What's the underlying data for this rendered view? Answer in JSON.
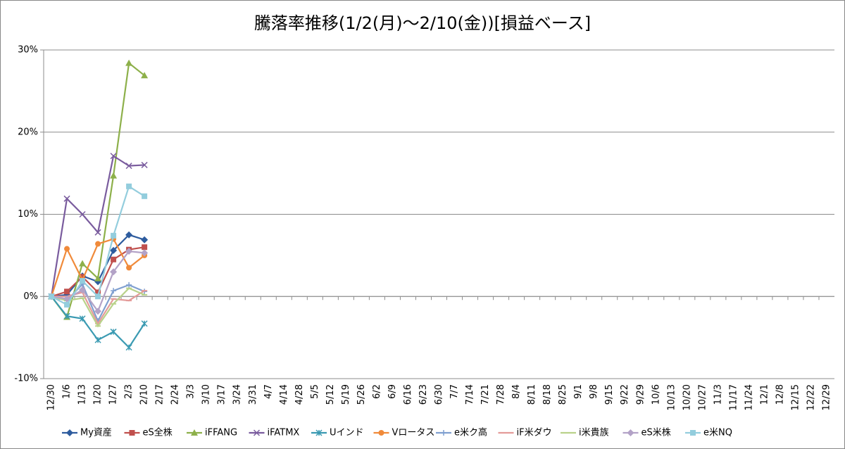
{
  "chart_data": {
    "type": "line",
    "title": "騰落率推移(1/2(月)～2/10(金))[損益ベース]",
    "categories": [
      "12/30",
      "1/6",
      "1/13",
      "1/20",
      "1/27",
      "2/3",
      "2/10",
      "2/17",
      "2/24",
      "3/3",
      "3/10",
      "3/17",
      "3/24",
      "3/31",
      "4/7",
      "4/14",
      "4/28",
      "5/5",
      "5/12",
      "5/19",
      "5/26",
      "6/2",
      "6/9",
      "6/16",
      "6/23",
      "6/30",
      "7/7",
      "7/14",
      "7/21",
      "7/28",
      "8/4",
      "8/11",
      "8/18",
      "8/25",
      "9/1",
      "9/8",
      "9/15",
      "9/22",
      "9/29",
      "10/6",
      "10/13",
      "10/20",
      "10/27",
      "11/3",
      "11/17",
      "11/24",
      "12/1",
      "12/8",
      "12/15",
      "12/22",
      "12/29"
    ],
    "ylim": [
      -10,
      30
    ],
    "yticks": [
      {
        "value": -10,
        "label": "-10%"
      },
      {
        "value": 0,
        "label": "0%"
      },
      {
        "value": 10,
        "label": "10%"
      },
      {
        "value": 20,
        "label": "20%"
      },
      {
        "value": 30,
        "label": "30%"
      }
    ],
    "grid": true,
    "legend": "bottom",
    "series": [
      {
        "name": "My資産",
        "color": "#2E5C9E",
        "marker": "diamond",
        "values": [
          0,
          0.2,
          2.5,
          1.8,
          5.6,
          7.5,
          6.9,
          null,
          null,
          null,
          null,
          null,
          null,
          null,
          null,
          null,
          null,
          null,
          null,
          null,
          null,
          null,
          null,
          null,
          null,
          null,
          null,
          null,
          null,
          null,
          null,
          null,
          null,
          null,
          null,
          null,
          null,
          null,
          null,
          null,
          null,
          null,
          null,
          null,
          null,
          null,
          null,
          null,
          null,
          null,
          null
        ]
      },
      {
        "name": "eS全株",
        "color": "#C0504D",
        "marker": "square",
        "values": [
          0,
          0.6,
          2.4,
          0.5,
          4.5,
          5.7,
          6.0,
          null,
          null,
          null,
          null,
          null,
          null,
          null,
          null,
          null,
          null,
          null,
          null,
          null,
          null,
          null,
          null,
          null,
          null,
          null,
          null,
          null,
          null,
          null,
          null,
          null,
          null,
          null,
          null,
          null,
          null,
          null,
          null,
          null,
          null,
          null,
          null,
          null,
          null,
          null,
          null,
          null,
          null,
          null,
          null
        ]
      },
      {
        "name": "iFFANG",
        "color": "#8DB04A",
        "marker": "triangle",
        "values": [
          0,
          -2.5,
          4.0,
          2.2,
          14.7,
          28.4,
          26.9,
          null,
          null,
          null,
          null,
          null,
          null,
          null,
          null,
          null,
          null,
          null,
          null,
          null,
          null,
          null,
          null,
          null,
          null,
          null,
          null,
          null,
          null,
          null,
          null,
          null,
          null,
          null,
          null,
          null,
          null,
          null,
          null,
          null,
          null,
          null,
          null,
          null,
          null,
          null,
          null,
          null,
          null,
          null,
          null
        ]
      },
      {
        "name": "iFATMX",
        "color": "#7A5C9E",
        "marker": "x",
        "values": [
          0,
          11.9,
          10.0,
          7.8,
          17.1,
          15.9,
          16.0,
          null,
          null,
          null,
          null,
          null,
          null,
          null,
          null,
          null,
          null,
          null,
          null,
          null,
          null,
          null,
          null,
          null,
          null,
          null,
          null,
          null,
          null,
          null,
          null,
          null,
          null,
          null,
          null,
          null,
          null,
          null,
          null,
          null,
          null,
          null,
          null,
          null,
          null,
          null,
          null,
          null,
          null,
          null,
          null
        ]
      },
      {
        "name": "Uインド",
        "color": "#3A9AB2",
        "marker": "asterisk",
        "values": [
          0,
          -2.4,
          -2.7,
          -5.3,
          -4.3,
          -6.2,
          -3.3,
          null,
          null,
          null,
          null,
          null,
          null,
          null,
          null,
          null,
          null,
          null,
          null,
          null,
          null,
          null,
          null,
          null,
          null,
          null,
          null,
          null,
          null,
          null,
          null,
          null,
          null,
          null,
          null,
          null,
          null,
          null,
          null,
          null,
          null,
          null,
          null,
          null,
          null,
          null,
          null,
          null,
          null,
          null,
          null
        ]
      },
      {
        "name": "Vロータス",
        "color": "#F08A3A",
        "marker": "circle",
        "values": [
          0,
          5.8,
          2.0,
          6.4,
          7.0,
          3.5,
          5.0,
          null,
          null,
          null,
          null,
          null,
          null,
          null,
          null,
          null,
          null,
          null,
          null,
          null,
          null,
          null,
          null,
          null,
          null,
          null,
          null,
          null,
          null,
          null,
          null,
          null,
          null,
          null,
          null,
          null,
          null,
          null,
          null,
          null,
          null,
          null,
          null,
          null,
          null,
          null,
          null,
          null,
          null,
          null,
          null
        ]
      },
      {
        "name": "e米ク高",
        "color": "#7F9FD0",
        "marker": "plus",
        "values": [
          0,
          -0.5,
          1.5,
          -3.0,
          0.7,
          1.4,
          0.6,
          null,
          null,
          null,
          null,
          null,
          null,
          null,
          null,
          null,
          null,
          null,
          null,
          null,
          null,
          null,
          null,
          null,
          null,
          null,
          null,
          null,
          null,
          null,
          null,
          null,
          null,
          null,
          null,
          null,
          null,
          null,
          null,
          null,
          null,
          null,
          null,
          null,
          null,
          null,
          null,
          null,
          null,
          null,
          null
        ]
      },
      {
        "name": "iF米ダウ",
        "color": "#E49B99",
        "marker": "dash",
        "values": [
          0,
          0,
          0.5,
          -3.3,
          -0.3,
          -0.5,
          0.7,
          null,
          null,
          null,
          null,
          null,
          null,
          null,
          null,
          null,
          null,
          null,
          null,
          null,
          null,
          null,
          null,
          null,
          null,
          null,
          null,
          null,
          null,
          null,
          null,
          null,
          null,
          null,
          null,
          null,
          null,
          null,
          null,
          null,
          null,
          null,
          null,
          null,
          null,
          null,
          null,
          null,
          null,
          null,
          null
        ]
      },
      {
        "name": "i米貴族",
        "color": "#B9D28A",
        "marker": "dash",
        "values": [
          0,
          -0.5,
          -0.2,
          -3.6,
          -0.9,
          1.0,
          0.2,
          null,
          null,
          null,
          null,
          null,
          null,
          null,
          null,
          null,
          null,
          null,
          null,
          null,
          null,
          null,
          null,
          null,
          null,
          null,
          null,
          null,
          null,
          null,
          null,
          null,
          null,
          null,
          null,
          null,
          null,
          null,
          null,
          null,
          null,
          null,
          null,
          null,
          null,
          null,
          null,
          null,
          null,
          null,
          null
        ]
      },
      {
        "name": "eS米株",
        "color": "#B3A2C7",
        "marker": "diamond",
        "values": [
          0,
          -0.3,
          0.8,
          -1.8,
          3.0,
          5.5,
          5.3,
          null,
          null,
          null,
          null,
          null,
          null,
          null,
          null,
          null,
          null,
          null,
          null,
          null,
          null,
          null,
          null,
          null,
          null,
          null,
          null,
          null,
          null,
          null,
          null,
          null,
          null,
          null,
          null,
          null,
          null,
          null,
          null,
          null,
          null,
          null,
          null,
          null,
          null,
          null,
          null,
          null,
          null,
          null,
          null
        ]
      },
      {
        "name": "e米NQ",
        "color": "#93CDDD",
        "marker": "square",
        "values": [
          0,
          -1.0,
          1.9,
          0,
          7.4,
          13.4,
          12.2,
          null,
          null,
          null,
          null,
          null,
          null,
          null,
          null,
          null,
          null,
          null,
          null,
          null,
          null,
          null,
          null,
          null,
          null,
          null,
          null,
          null,
          null,
          null,
          null,
          null,
          null,
          null,
          null,
          null,
          null,
          null,
          null,
          null,
          null,
          null,
          null,
          null,
          null,
          null,
          null,
          null,
          null,
          null,
          null
        ]
      }
    ]
  }
}
